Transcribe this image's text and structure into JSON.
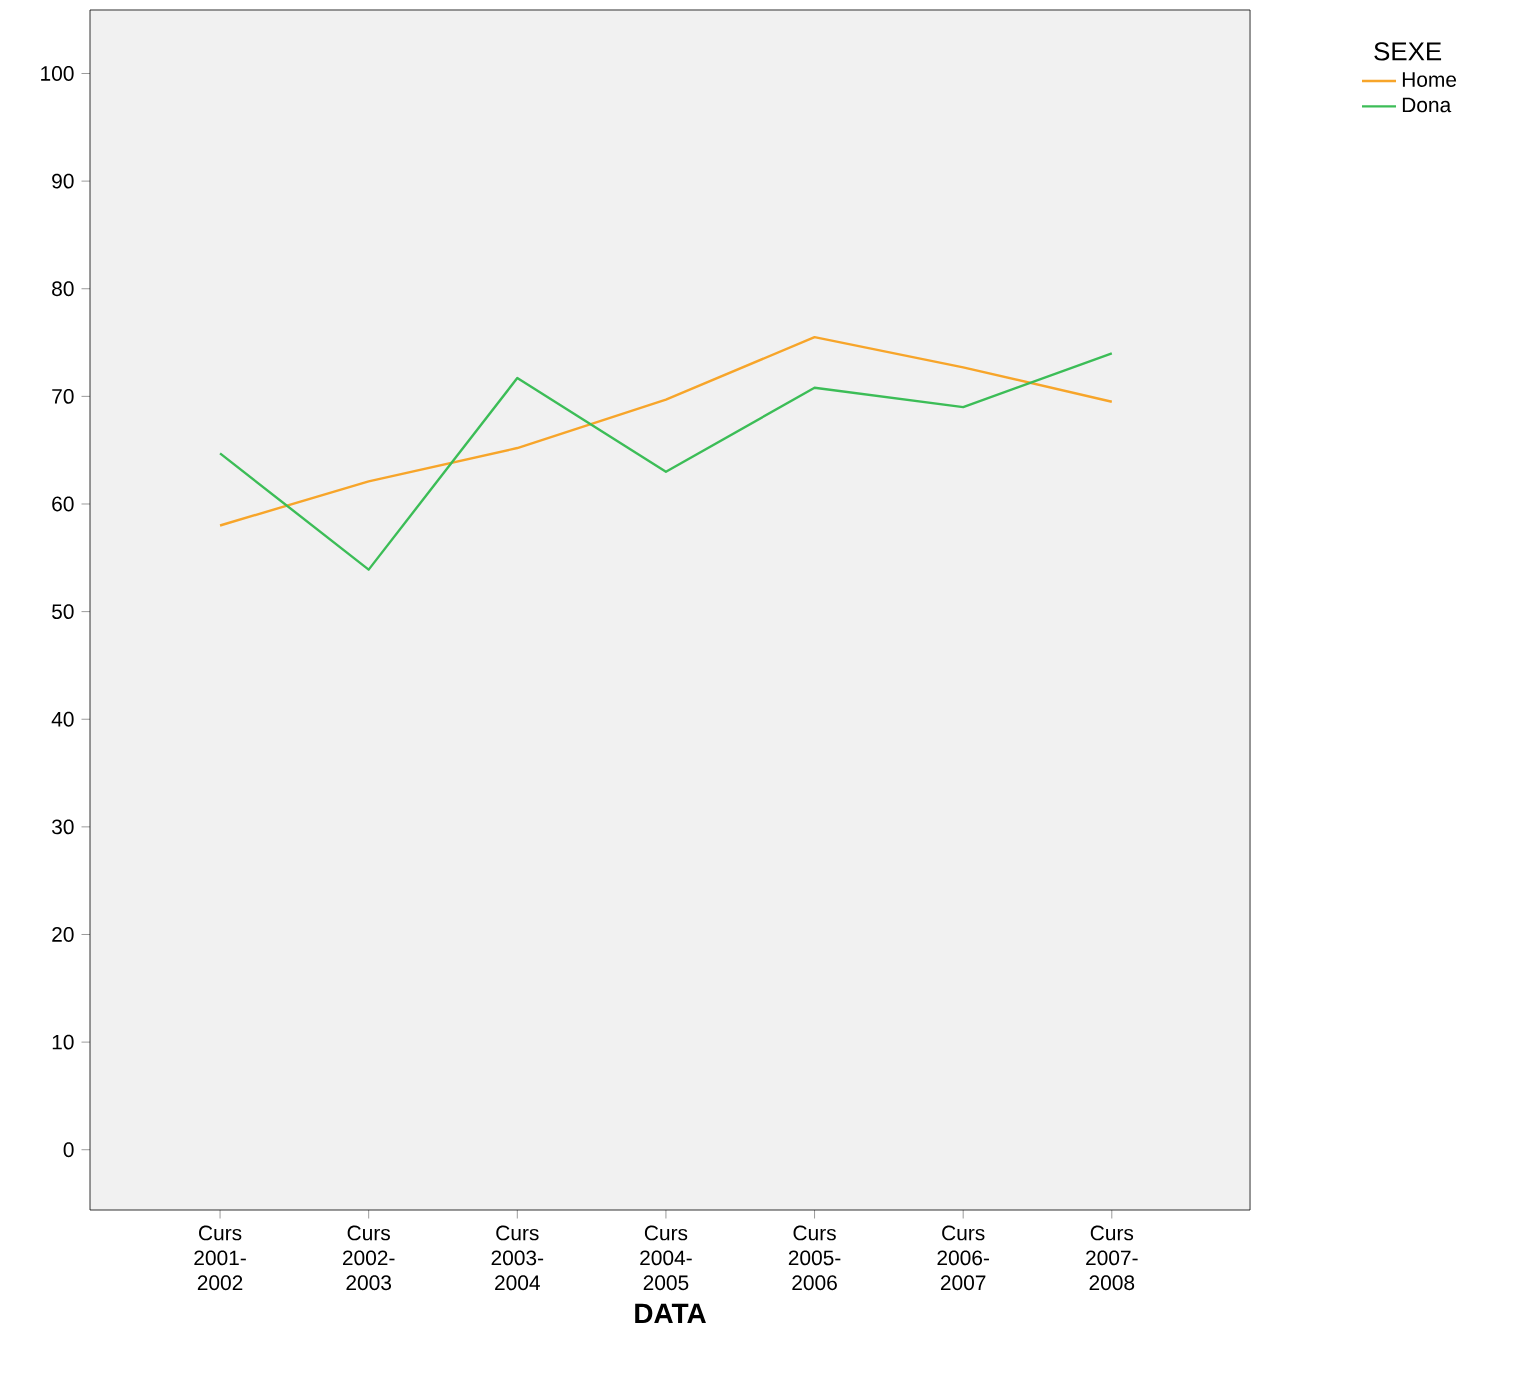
{
  "chart_data": {
    "type": "line",
    "xlabel": "DATA",
    "legend_title": "SEXE",
    "legend": "right",
    "grid": false,
    "categories": [
      "Curs 2001-2002",
      "Curs 2002-2003",
      "Curs 2003-2004",
      "Curs 2004-2005",
      "Curs 2005-2006",
      "Curs 2006-2007",
      "Curs 2007-2008"
    ],
    "series": [
      {
        "name": "Home",
        "color": "#f7a52a",
        "values": [
          58.0,
          62.1,
          65.2,
          69.7,
          75.5,
          72.7,
          69.5
        ]
      },
      {
        "name": "Dona",
        "color": "#3cbd57",
        "values": [
          64.7,
          53.9,
          71.7,
          63.0,
          70.8,
          69.0,
          74.0
        ]
      }
    ],
    "ylim": [
      -5.6,
      105.9
    ],
    "yticks": [
      0,
      10,
      20,
      30,
      40,
      50,
      60,
      70,
      80,
      90,
      100
    ]
  }
}
